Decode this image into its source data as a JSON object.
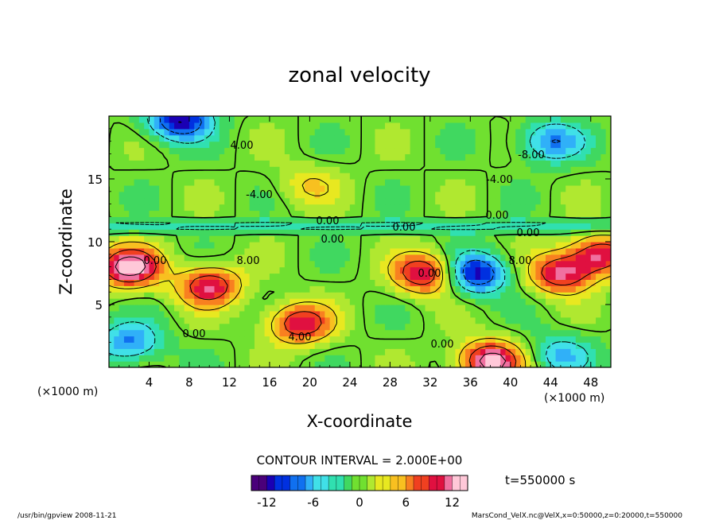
{
  "chart_data": {
    "type": "heatmap",
    "title": "zonal velocity",
    "xlabel": "X-coordinate",
    "ylabel": "Z-coordinate",
    "x_unit": "(×1000 m)",
    "x_unit_right": "(×1000 m)",
    "xlim": [
      0,
      50
    ],
    "ylim": [
      0,
      20
    ],
    "x_ticks": [
      4,
      8,
      12,
      16,
      20,
      24,
      28,
      32,
      36,
      40,
      44,
      48
    ],
    "y_ticks": [
      5,
      10,
      15
    ],
    "contour_interval_label": "CONTOUR INTERVAL = 2.000E+00",
    "time_label": "t=550000 s",
    "colorbar": {
      "range": [
        -14,
        14
      ],
      "ticks": [
        -12,
        -6,
        0,
        6,
        12
      ],
      "colors": [
        "#4a007a",
        "#1a00b4",
        "#0030e0",
        "#1070f0",
        "#30b0f8",
        "#40e0e8",
        "#30e0b0",
        "#40d860",
        "#70e030",
        "#b0e830",
        "#e8e820",
        "#f8c020",
        "#f88020",
        "#f04020",
        "#e01040",
        "#f070a0",
        "#ffc8d8"
      ]
    },
    "contour_labels": [
      "4.00",
      "-8.00",
      "-4.00",
      "-4.00",
      "0.00",
      "0.00",
      "0.00",
      "0.00",
      "0.00",
      "8.00",
      "4.00",
      "0.00",
      "0.00",
      "8.00",
      "0.00",
      "0.00"
    ],
    "field_features": [
      {
        "x": 2,
        "z": 8,
        "u": 14
      },
      {
        "x": 10,
        "z": 6.5,
        "u": 11
      },
      {
        "x": 19,
        "z": 3.5,
        "u": 11
      },
      {
        "x": 31.5,
        "z": 7.5,
        "u": 12
      },
      {
        "x": 38,
        "z": 0.5,
        "u": 14
      },
      {
        "x": 45,
        "z": 7.5,
        "u": 11
      },
      {
        "x": 49,
        "z": 9,
        "u": 11
      },
      {
        "x": 36.5,
        "z": 7.5,
        "u": -12
      },
      {
        "x": 7,
        "z": 19.7,
        "u": -12
      },
      {
        "x": 44,
        "z": 18,
        "u": -8
      },
      {
        "x": 2,
        "z": 2,
        "u": -8
      },
      {
        "x": 20,
        "z": 14.5,
        "u": 4
      },
      {
        "x": 45,
        "z": 1,
        "u": -6
      }
    ]
  },
  "footer": {
    "left": "/usr/bin/gpview   2008-11-21",
    "right": "MarsCond_VelX.nc@VelX,x=0:50000,z=0:20000,t=550000"
  }
}
